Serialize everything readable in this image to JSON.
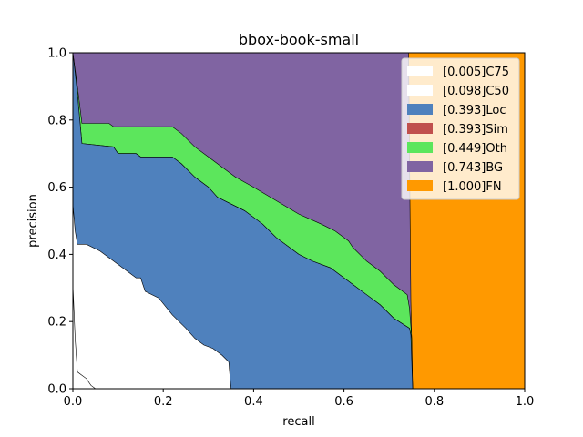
{
  "chart_data": {
    "type": "area",
    "title": "bbox-book-small",
    "xlabel": "recall",
    "ylabel": "precision",
    "xlim": [
      0,
      1
    ],
    "ylim": [
      0,
      1
    ],
    "xticks": [
      "0.0",
      "0.2",
      "0.4",
      "0.6",
      "0.8",
      "1.0"
    ],
    "yticks": [
      "0.0",
      "0.2",
      "0.4",
      "0.6",
      "0.8",
      "1.0"
    ],
    "grid": false,
    "legend_position": "top-right",
    "series": [
      {
        "name": "[1.000]FN",
        "color": "#ff9900",
        "points": [
          [
            0,
            1
          ],
          [
            1,
            1
          ],
          [
            1,
            0
          ],
          [
            0,
            0
          ]
        ]
      },
      {
        "name": "[0.743]BG",
        "color": "#8064a2",
        "points": [
          [
            0,
            1
          ],
          [
            0.743,
            1
          ],
          [
            0.748,
            0.26
          ],
          [
            0.752,
            0
          ],
          [
            0,
            0
          ]
        ]
      },
      {
        "name": "[0.449]Oth",
        "color": "#5ce65c",
        "points": [
          [
            0,
            1
          ],
          [
            0.01,
            0.9
          ],
          [
            0.02,
            0.79
          ],
          [
            0.08,
            0.79
          ],
          [
            0.09,
            0.78
          ],
          [
            0.22,
            0.78
          ],
          [
            0.24,
            0.76
          ],
          [
            0.27,
            0.72
          ],
          [
            0.3,
            0.69
          ],
          [
            0.33,
            0.66
          ],
          [
            0.36,
            0.63
          ],
          [
            0.4,
            0.6
          ],
          [
            0.45,
            0.56
          ],
          [
            0.5,
            0.52
          ],
          [
            0.55,
            0.49
          ],
          [
            0.58,
            0.47
          ],
          [
            0.61,
            0.44
          ],
          [
            0.62,
            0.42
          ],
          [
            0.65,
            0.38
          ],
          [
            0.68,
            0.35
          ],
          [
            0.71,
            0.31
          ],
          [
            0.74,
            0.28
          ],
          [
            0.745,
            0.24
          ],
          [
            0.75,
            0.15
          ],
          [
            0.752,
            0
          ],
          [
            0,
            0
          ]
        ]
      },
      {
        "name": "[0.393]Sim",
        "color": "#c0504d",
        "points": [
          [
            0,
            1
          ],
          [
            0.01,
            0.88
          ],
          [
            0.02,
            0.73
          ],
          [
            0.09,
            0.72
          ],
          [
            0.1,
            0.7
          ],
          [
            0.14,
            0.7
          ],
          [
            0.15,
            0.69
          ],
          [
            0.22,
            0.69
          ],
          [
            0.24,
            0.67
          ],
          [
            0.27,
            0.63
          ],
          [
            0.3,
            0.6
          ],
          [
            0.32,
            0.57
          ],
          [
            0.35,
            0.55
          ],
          [
            0.38,
            0.53
          ],
          [
            0.42,
            0.49
          ],
          [
            0.45,
            0.45
          ],
          [
            0.48,
            0.42
          ],
          [
            0.5,
            0.4
          ],
          [
            0.53,
            0.38
          ],
          [
            0.57,
            0.36
          ],
          [
            0.6,
            0.33
          ],
          [
            0.62,
            0.31
          ],
          [
            0.65,
            0.28
          ],
          [
            0.68,
            0.25
          ],
          [
            0.71,
            0.21
          ],
          [
            0.745,
            0.18
          ],
          [
            0.748,
            0.16
          ],
          [
            0.752,
            0
          ],
          [
            0,
            0
          ]
        ]
      },
      {
        "name": "[0.393]Loc",
        "color": "#4f81bd",
        "points": [
          [
            0,
            1
          ],
          [
            0.01,
            0.88
          ],
          [
            0.02,
            0.73
          ],
          [
            0.09,
            0.72
          ],
          [
            0.1,
            0.7
          ],
          [
            0.14,
            0.7
          ],
          [
            0.15,
            0.69
          ],
          [
            0.22,
            0.69
          ],
          [
            0.24,
            0.67
          ],
          [
            0.27,
            0.63
          ],
          [
            0.3,
            0.6
          ],
          [
            0.32,
            0.57
          ],
          [
            0.35,
            0.55
          ],
          [
            0.38,
            0.53
          ],
          [
            0.42,
            0.49
          ],
          [
            0.45,
            0.45
          ],
          [
            0.48,
            0.42
          ],
          [
            0.5,
            0.4
          ],
          [
            0.53,
            0.38
          ],
          [
            0.57,
            0.36
          ],
          [
            0.6,
            0.33
          ],
          [
            0.62,
            0.31
          ],
          [
            0.65,
            0.28
          ],
          [
            0.68,
            0.25
          ],
          [
            0.71,
            0.21
          ],
          [
            0.745,
            0.18
          ],
          [
            0.748,
            0.16
          ],
          [
            0.752,
            0
          ],
          [
            0,
            0
          ]
        ]
      },
      {
        "name": "[0.098]C50",
        "color": "#ffffff",
        "points": [
          [
            0,
            0.55
          ],
          [
            0.005,
            0.47
          ],
          [
            0.01,
            0.43
          ],
          [
            0.03,
            0.43
          ],
          [
            0.06,
            0.41
          ],
          [
            0.09,
            0.38
          ],
          [
            0.11,
            0.36
          ],
          [
            0.13,
            0.34
          ],
          [
            0.14,
            0.33
          ],
          [
            0.15,
            0.33
          ],
          [
            0.16,
            0.29
          ],
          [
            0.19,
            0.27
          ],
          [
            0.22,
            0.22
          ],
          [
            0.25,
            0.18
          ],
          [
            0.27,
            0.15
          ],
          [
            0.29,
            0.13
          ],
          [
            0.31,
            0.12
          ],
          [
            0.33,
            0.1
          ],
          [
            0.345,
            0.08
          ],
          [
            0.35,
            0
          ],
          [
            0,
            0
          ]
        ]
      },
      {
        "name": "[0.005]C75",
        "color": "#ffffff",
        "points": [
          [
            0,
            0.31
          ],
          [
            0.005,
            0.15
          ],
          [
            0.01,
            0.05
          ],
          [
            0.02,
            0.04
          ],
          [
            0.03,
            0.03
          ],
          [
            0.04,
            0.01
          ],
          [
            0.05,
            0
          ],
          [
            0,
            0
          ]
        ]
      }
    ]
  }
}
